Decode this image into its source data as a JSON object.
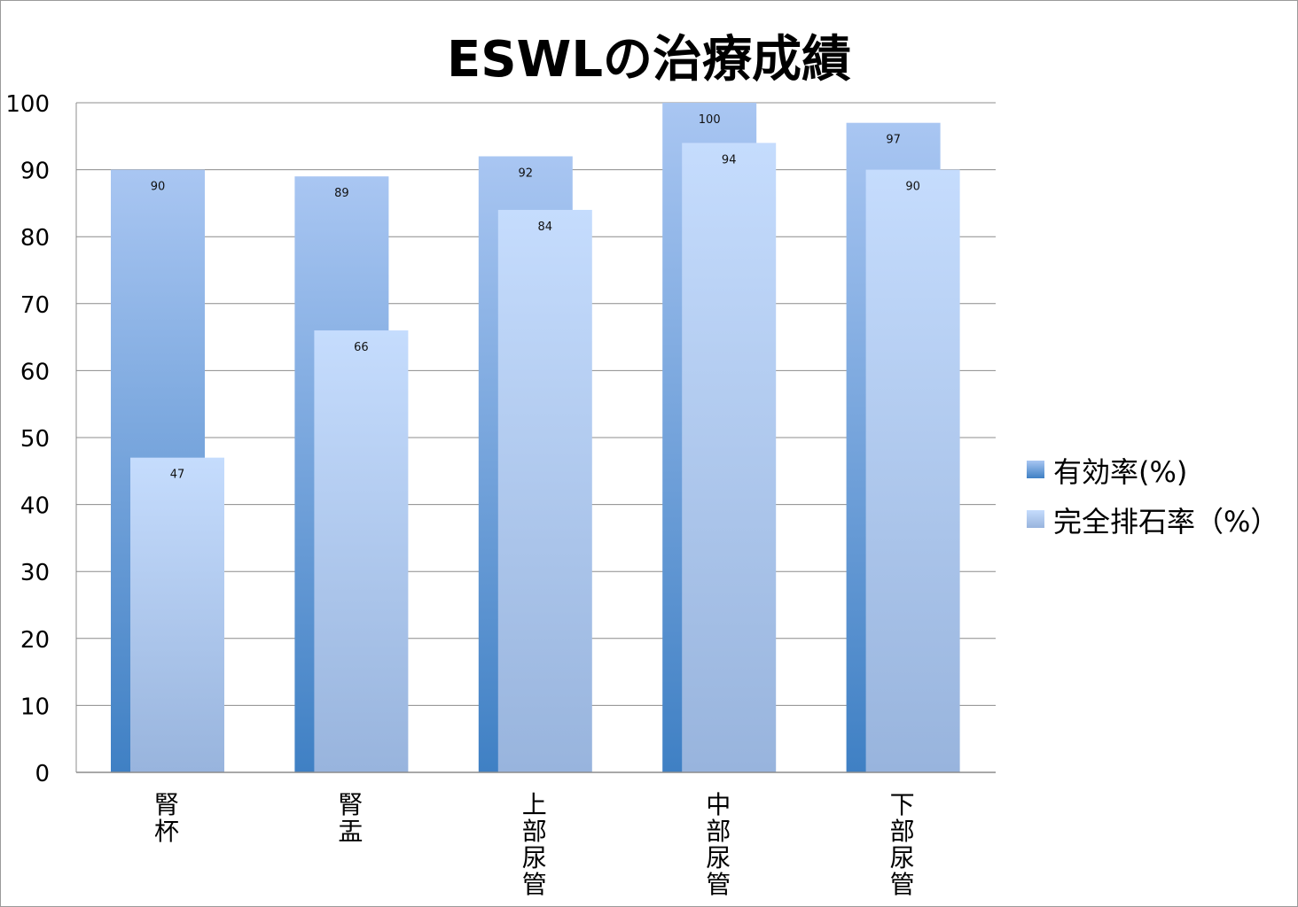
{
  "chart_data": {
    "type": "bar",
    "title": "ESWLの治療成績",
    "xlabel": "",
    "ylabel": "",
    "categories": [
      "腎杯",
      "腎盂",
      "上部尿管",
      "中部尿管",
      "下部尿管"
    ],
    "series": [
      {
        "name": "有効率(%)",
        "values": [
          90,
          89,
          92,
          100,
          97
        ],
        "color_top": "#a9c6f2",
        "color_bottom": "#3f80c4"
      },
      {
        "name": "完全排石率（%）",
        "values": [
          47,
          66,
          84,
          94,
          90
        ],
        "color_top": "#c5dcfd",
        "color_bottom": "#98b4dd"
      }
    ],
    "ylim": [
      0,
      100
    ],
    "yticks": [
      0,
      10,
      20,
      30,
      40,
      50,
      60,
      70,
      80,
      90,
      100
    ],
    "grid": true,
    "legend_position": "right",
    "data_labels": true
  }
}
